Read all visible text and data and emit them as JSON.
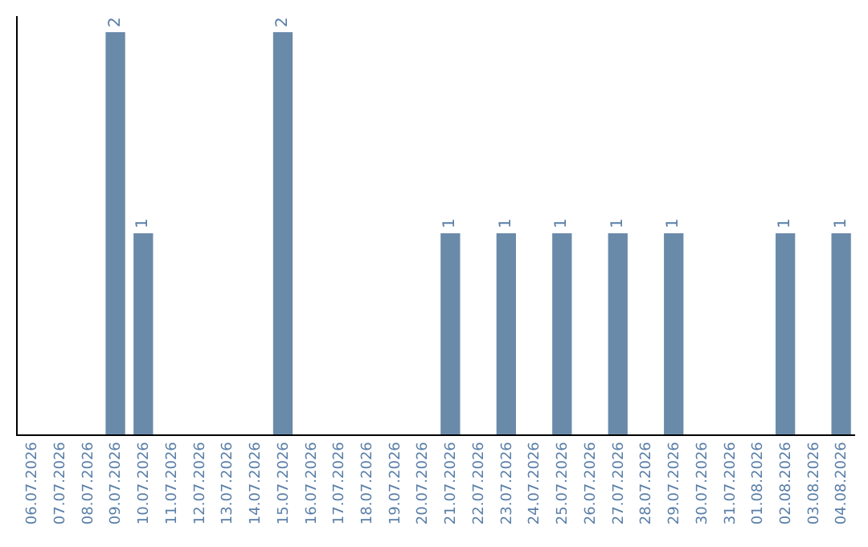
{
  "chart_data": {
    "type": "bar",
    "categories": [
      "06.07.2026",
      "07.07.2026",
      "08.07.2026",
      "09.07.2026",
      "10.07.2026",
      "11.07.2026",
      "12.07.2026",
      "13.07.2026",
      "14.07.2026",
      "15.07.2026",
      "16.07.2026",
      "17.07.2026",
      "18.07.2026",
      "19.07.2026",
      "20.07.2026",
      "21.07.2026",
      "22.07.2026",
      "23.07.2026",
      "24.07.2026",
      "25.07.2026",
      "26.07.2026",
      "27.07.2026",
      "28.07.2026",
      "29.07.2026",
      "30.07.2026",
      "31.07.2026",
      "01.08.2026",
      "02.08.2026",
      "03.08.2026",
      "04.08.2026"
    ],
    "values": [
      0,
      0,
      0,
      2,
      1,
      0,
      0,
      0,
      0,
      2,
      0,
      0,
      0,
      0,
      0,
      1,
      0,
      1,
      0,
      1,
      0,
      1,
      0,
      1,
      0,
      0,
      0,
      1,
      0,
      1
    ],
    "value_labels": [
      null,
      null,
      null,
      "2",
      "1",
      null,
      null,
      null,
      null,
      "2",
      null,
      null,
      null,
      null,
      null,
      "1",
      null,
      "1",
      null,
      "1",
      null,
      "1",
      null,
      "1",
      null,
      null,
      null,
      "1",
      null,
      "1"
    ],
    "color": "#6a8aaa",
    "ylim": [
      0,
      2.08
    ],
    "tick_labels": "x"
  }
}
